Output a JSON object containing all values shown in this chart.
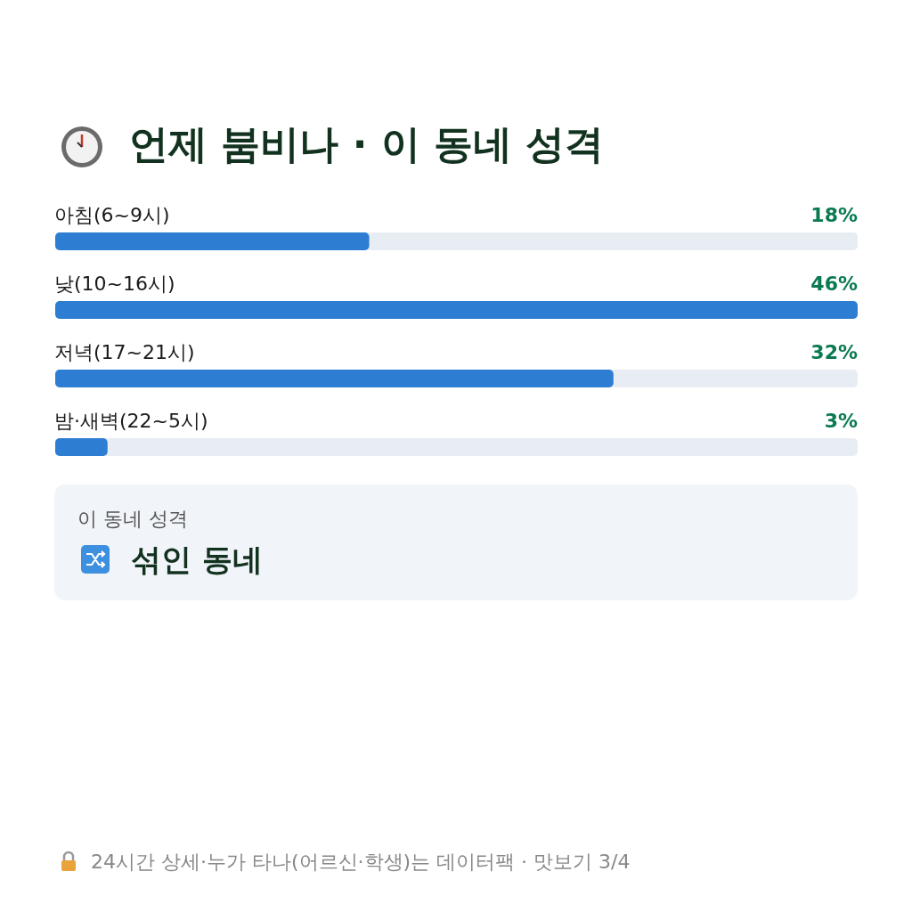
{
  "chart_data": {
    "type": "bar",
    "orientation": "horizontal",
    "title": "언제 붐비나 · 이 동네 성격",
    "categories": [
      "아침(6~9시)",
      "낮(10~16시)",
      "저녁(17~21시)",
      "밤·새벽(22~5시)"
    ],
    "values": [
      18,
      46,
      32,
      3
    ],
    "value_labels": [
      "18%",
      "46%",
      "32%",
      "3%"
    ],
    "color": "#2d7dd2",
    "xlim": [
      0,
      46
    ],
    "annotations": [
      "이 동네 성격",
      "섞인 동네",
      "24시간 상세·누가 타나(어르신·학생)는 데이터팩 · 맛보기 3/4"
    ]
  }
}
